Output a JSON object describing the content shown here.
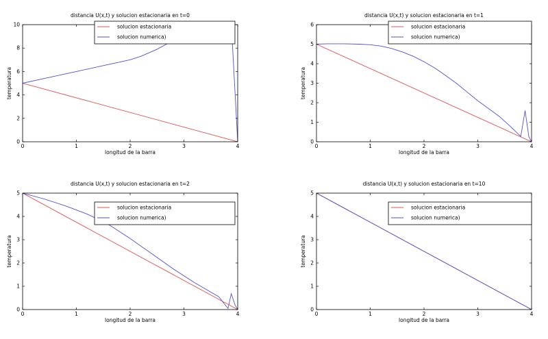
{
  "chart_data": [
    {
      "type": "line",
      "title": "distancia U(x,t) y solucion estacionaria en t=0",
      "xlabel": "longitud de la barra",
      "ylabel": "temperatura",
      "xlim": [
        0,
        4
      ],
      "ylim": [
        0,
        10
      ],
      "xticks": [
        0,
        1,
        2,
        3,
        4
      ],
      "yticks": [
        0,
        2,
        4,
        6,
        8,
        10
      ],
      "legend_position": "top-right",
      "grid": false,
      "series": [
        {
          "name": "solucion estacionaria",
          "color": "#e05050",
          "x": [
            0,
            4
          ],
          "y": [
            5,
            0
          ]
        },
        {
          "name": "solucion numerica)",
          "color": "#5050d0",
          "x": [
            0,
            0.5,
            1.0,
            1.5,
            2.0,
            2.2,
            2.5,
            2.7,
            2.9,
            3.1,
            3.3,
            3.5,
            3.7,
            3.85,
            3.9,
            4.0
          ],
          "y": [
            5,
            5.5,
            6.0,
            6.5,
            7.0,
            7.3,
            7.9,
            8.4,
            8.9,
            9.3,
            9.5,
            9.6,
            9.4,
            8.8,
            8.5,
            0
          ]
        }
      ]
    },
    {
      "type": "line",
      "title": "distancia U(x,t) y solucion estacionaria en t=1",
      "xlabel": "longitud de la barra",
      "ylabel": "temperatura",
      "xlim": [
        0,
        4
      ],
      "ylim": [
        0,
        6
      ],
      "xticks": [
        0,
        1,
        2,
        3,
        4
      ],
      "yticks": [
        0,
        1,
        2,
        3,
        4,
        5,
        6
      ],
      "legend_position": "top-right",
      "grid": false,
      "series": [
        {
          "name": "solucion estacionaria",
          "color": "#e05050",
          "x": [
            0,
            4
          ],
          "y": [
            5,
            0
          ]
        },
        {
          "name": "solucion numerica)",
          "color": "#5050d0",
          "x": [
            0,
            0.2,
            0.5,
            0.8,
            1.0,
            1.2,
            1.4,
            1.6,
            1.8,
            2.0,
            2.2,
            2.4,
            2.6,
            2.8,
            3.0,
            3.2,
            3.4,
            3.6,
            3.75,
            3.8,
            3.88,
            3.95,
            4.0
          ],
          "y": [
            5,
            5.02,
            5.02,
            5.0,
            4.97,
            4.9,
            4.78,
            4.6,
            4.38,
            4.1,
            3.78,
            3.4,
            3.0,
            2.55,
            2.1,
            1.7,
            1.3,
            0.8,
            0.4,
            0.28,
            1.6,
            0.25,
            0
          ]
        }
      ]
    },
    {
      "type": "line",
      "title": "distancia U(x,t) y solucion estacionaria en t=2",
      "xlabel": "longitud de la barra",
      "ylabel": "temperatura",
      "xlim": [
        0,
        4
      ],
      "ylim": [
        0,
        5
      ],
      "xticks": [
        0,
        1,
        2,
        3,
        4
      ],
      "yticks": [
        0,
        1,
        2,
        3,
        4,
        5
      ],
      "legend_position": "top-right",
      "grid": false,
      "series": [
        {
          "name": "solucion estacionaria",
          "color": "#e05050",
          "x": [
            0,
            4
          ],
          "y": [
            5,
            0
          ]
        },
        {
          "name": "solucion numerica)",
          "color": "#5050d0",
          "x": [
            0,
            0.4,
            0.8,
            1.2,
            1.6,
            2.0,
            2.4,
            2.8,
            3.2,
            3.5,
            3.65,
            3.75,
            3.82,
            3.88,
            3.95,
            4.0
          ],
          "y": [
            5,
            4.75,
            4.45,
            4.1,
            3.65,
            3.05,
            2.4,
            1.75,
            1.15,
            0.75,
            0.55,
            0.25,
            0.05,
            0.68,
            0.2,
            0
          ]
        }
      ]
    },
    {
      "type": "line",
      "title": "distancia U(x,t) y solucion estacionaria en t=10",
      "xlabel": "longitud de la barra",
      "ylabel": "temperatura",
      "xlim": [
        0,
        4
      ],
      "ylim": [
        0,
        5
      ],
      "xticks": [
        0,
        1,
        2,
        3,
        4
      ],
      "yticks": [
        0,
        1,
        2,
        3,
        4,
        5
      ],
      "legend_position": "top-right",
      "grid": false,
      "series": [
        {
          "name": "solucion estacionaria",
          "color": "#e05050",
          "x": [
            0,
            4
          ],
          "y": [
            5,
            0
          ]
        },
        {
          "name": "solucion numerica)",
          "color": "#5050d0",
          "x": [
            0,
            1,
            2,
            3,
            4
          ],
          "y": [
            5,
            3.75,
            2.5,
            1.25,
            0
          ]
        }
      ]
    }
  ]
}
